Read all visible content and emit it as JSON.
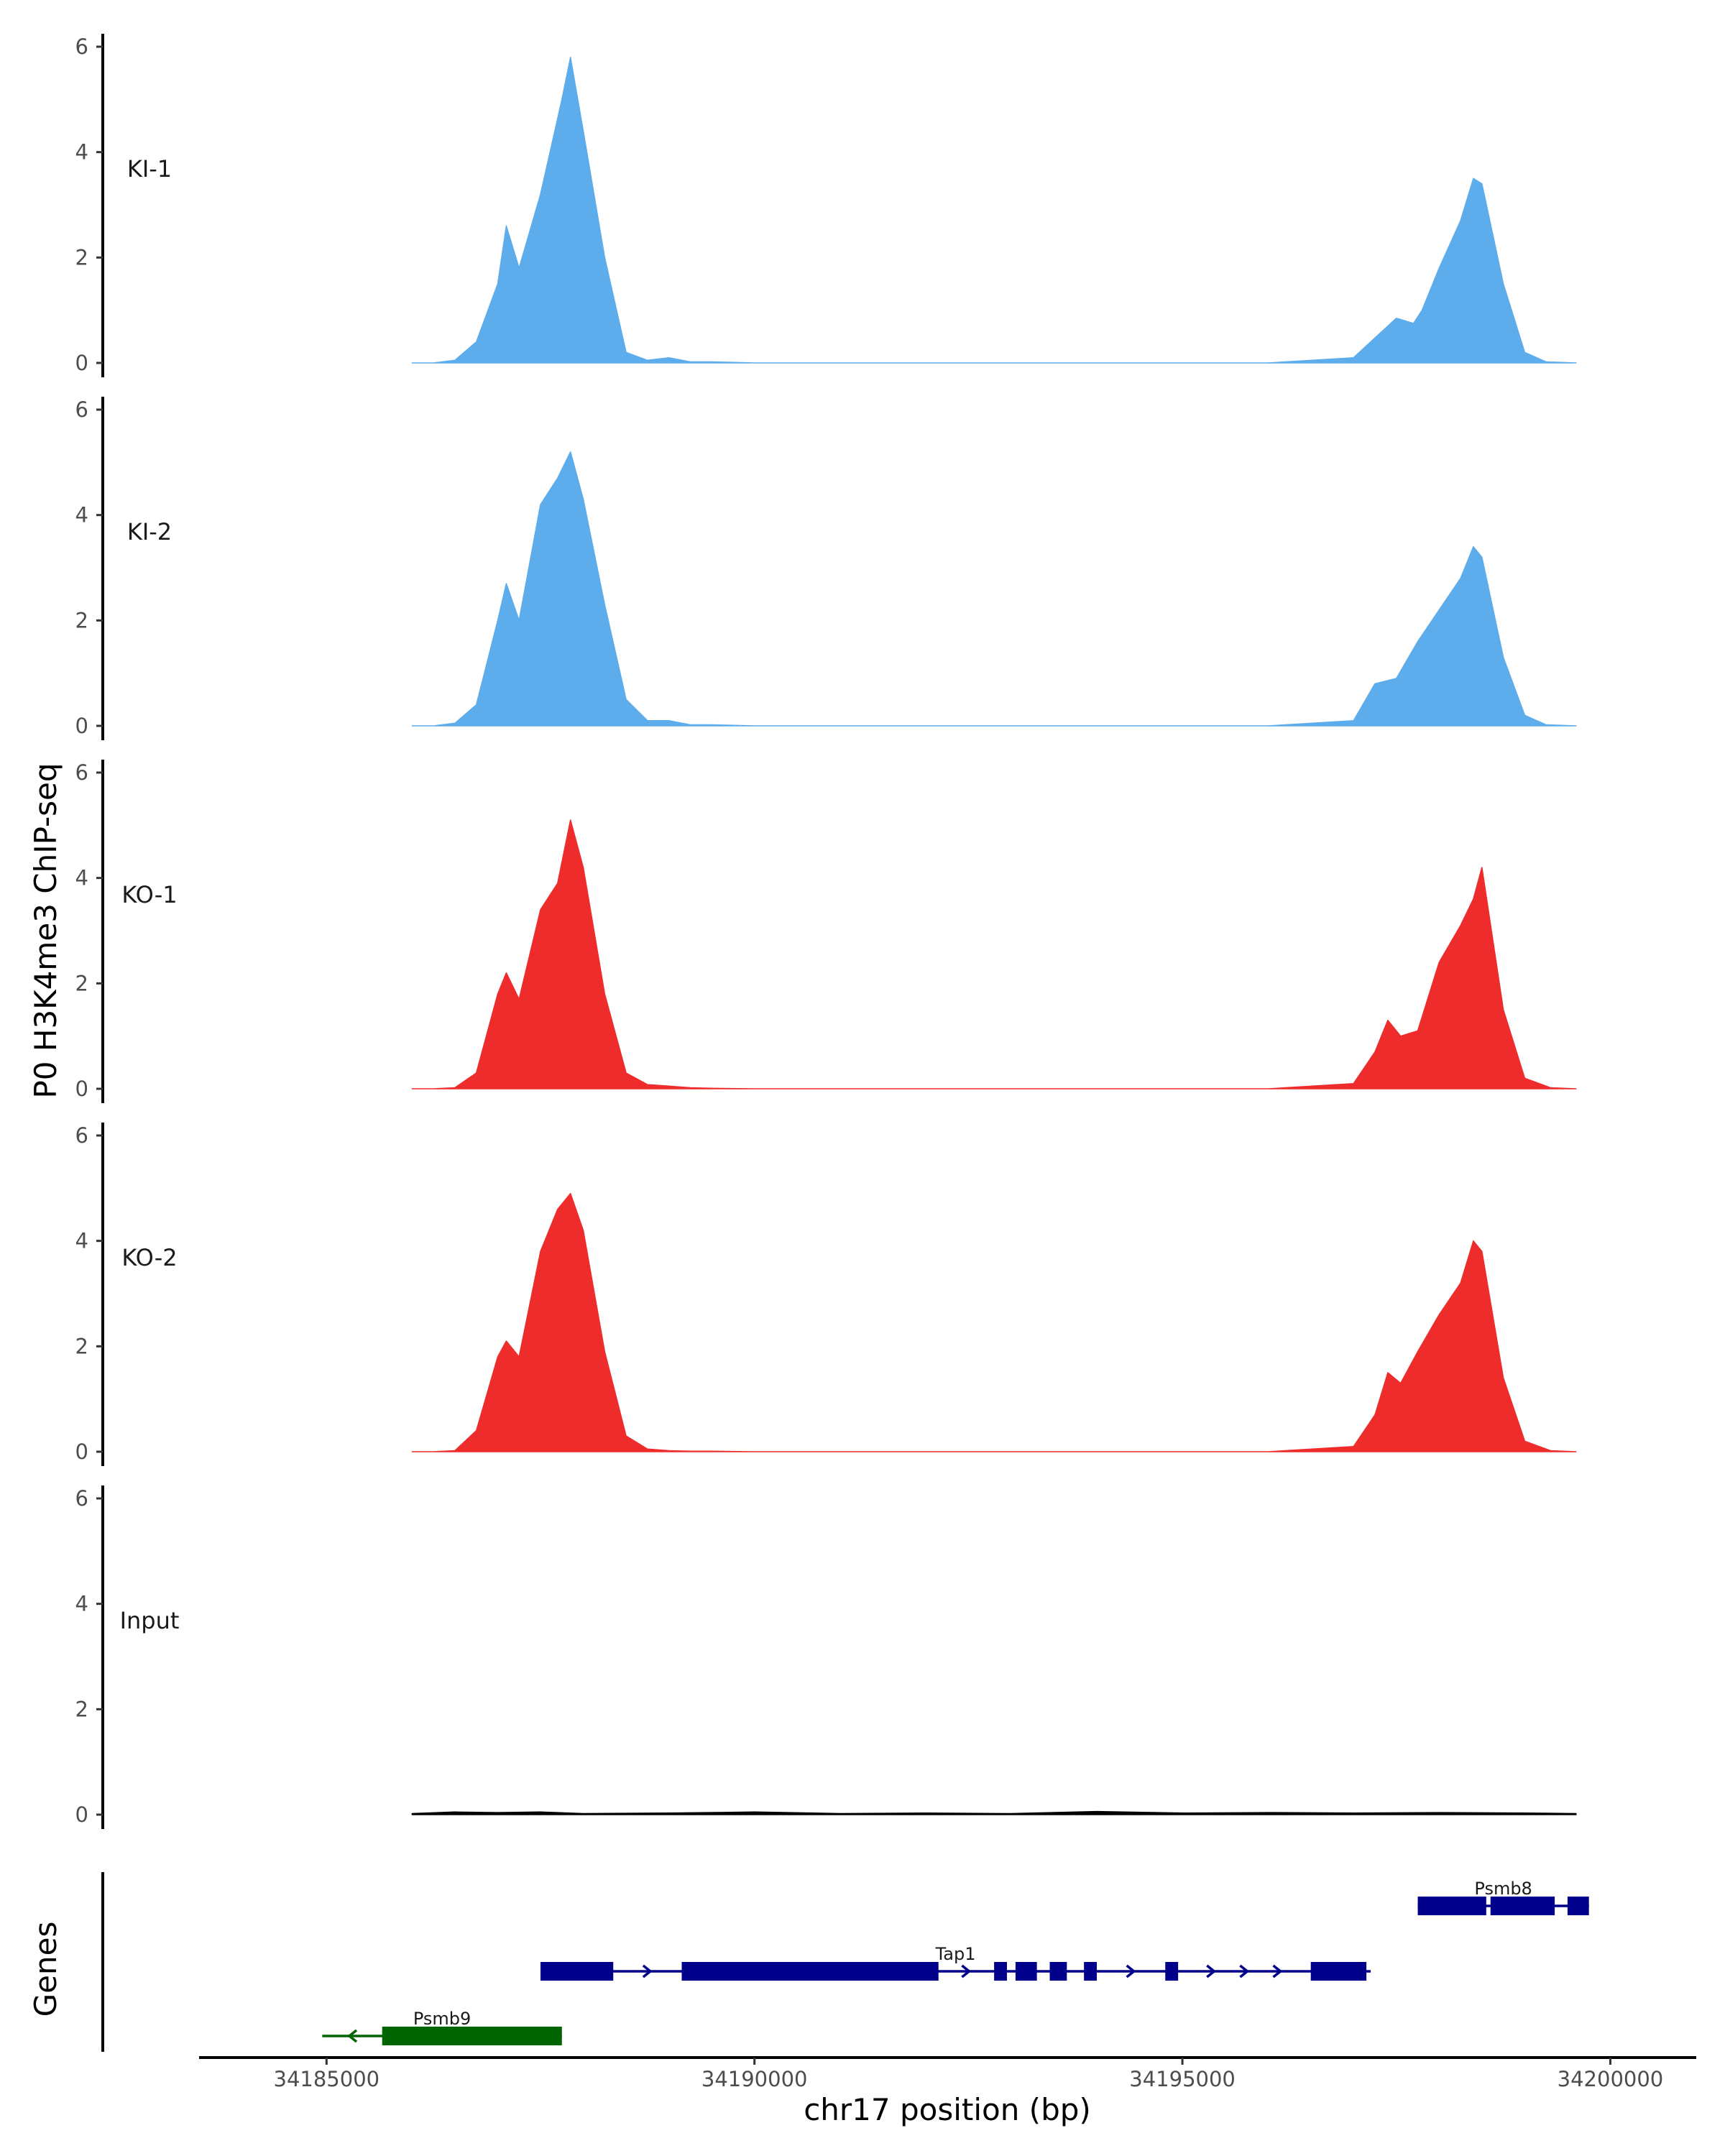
{
  "chart_data": {
    "type": "area",
    "ylabel": "P0 H3K4me3 ChIP-seq",
    "xlabel": "chr17 position (bp)",
    "gene_panel_label": "Genes",
    "xlim": [
      34184250,
      34200500
    ],
    "xticks": [
      34185000,
      34190000,
      34195000,
      34200000
    ],
    "xtick_labels": [
      "34185000",
      "34190000",
      "34195000",
      "34200000"
    ],
    "ylim": [
      0,
      6
    ],
    "yticks": [
      0,
      2,
      4,
      6
    ],
    "ytick_labels": [
      "0",
      "2",
      "4",
      "6"
    ],
    "tracks": [
      {
        "name": "KI-1",
        "color": "#5dacec",
        "x": [
          34186000,
          34186250,
          34186500,
          34186750,
          34187000,
          34187100,
          34187250,
          34187500,
          34187750,
          34187850,
          34188000,
          34188250,
          34188500,
          34188750,
          34189000,
          34189250,
          34189500,
          34190000,
          34192000,
          34194000,
          34196000,
          34197000,
          34197500,
          34197700,
          34197800,
          34198000,
          34198250,
          34198400,
          34198500,
          34198750,
          34199000,
          34199250,
          34199600
        ],
        "values": [
          0,
          0,
          0.05,
          0.4,
          1.5,
          2.6,
          1.8,
          3.2,
          5.0,
          5.8,
          4.4,
          2.0,
          0.2,
          0.05,
          0.1,
          0.02,
          0.02,
          0,
          0,
          0,
          0,
          0.1,
          0.85,
          0.75,
          1.0,
          1.8,
          2.7,
          3.5,
          3.4,
          1.5,
          0.2,
          0.02,
          0
        ]
      },
      {
        "name": "KI-2",
        "color": "#5dacec",
        "x": [
          34186000,
          34186250,
          34186500,
          34186750,
          34187000,
          34187100,
          34187250,
          34187500,
          34187700,
          34187850,
          34188000,
          34188250,
          34188500,
          34188750,
          34189000,
          34189250,
          34189500,
          34190000,
          34192000,
          34194000,
          34196000,
          34197000,
          34197250,
          34197500,
          34197750,
          34198000,
          34198250,
          34198400,
          34198500,
          34198750,
          34199000,
          34199250,
          34199600
        ],
        "values": [
          0,
          0,
          0.05,
          0.4,
          2.0,
          2.7,
          2.0,
          4.2,
          4.7,
          5.2,
          4.3,
          2.3,
          0.5,
          0.1,
          0.1,
          0.02,
          0.02,
          0,
          0,
          0,
          0,
          0.1,
          0.8,
          0.9,
          1.6,
          2.2,
          2.8,
          3.4,
          3.2,
          1.3,
          0.2,
          0.02,
          0
        ]
      },
      {
        "name": "KO-1",
        "color": "#ee2c2c",
        "x": [
          34186000,
          34186250,
          34186500,
          34186750,
          34187000,
          34187100,
          34187250,
          34187500,
          34187700,
          34187850,
          34188000,
          34188250,
          34188500,
          34188750,
          34189000,
          34189250,
          34189500,
          34190000,
          34192000,
          34194000,
          34196000,
          34197000,
          34197250,
          34197400,
          34197550,
          34197750,
          34198000,
          34198250,
          34198400,
          34198500,
          34198750,
          34199000,
          34199300,
          34199600
        ],
        "values": [
          0,
          0,
          0.02,
          0.3,
          1.8,
          2.2,
          1.7,
          3.4,
          3.9,
          5.1,
          4.2,
          1.8,
          0.3,
          0.08,
          0.05,
          0.02,
          0.01,
          0,
          0,
          0,
          0,
          0.1,
          0.7,
          1.3,
          1.0,
          1.1,
          2.4,
          3.1,
          3.6,
          4.2,
          1.5,
          0.2,
          0.02,
          0
        ]
      },
      {
        "name": "KO-2",
        "color": "#ee2c2c",
        "x": [
          34186000,
          34186250,
          34186500,
          34186750,
          34187000,
          34187100,
          34187250,
          34187500,
          34187700,
          34187850,
          34188000,
          34188250,
          34188500,
          34188750,
          34189000,
          34189250,
          34189500,
          34190000,
          34192000,
          34194000,
          34196000,
          34197000,
          34197250,
          34197400,
          34197550,
          34197750,
          34198000,
          34198250,
          34198400,
          34198500,
          34198750,
          34199000,
          34199300,
          34199600
        ],
        "values": [
          0,
          0,
          0.02,
          0.4,
          1.8,
          2.1,
          1.8,
          3.8,
          4.6,
          4.9,
          4.2,
          1.9,
          0.3,
          0.05,
          0.02,
          0.01,
          0.01,
          0,
          0,
          0,
          0,
          0.1,
          0.7,
          1.5,
          1.3,
          1.9,
          2.6,
          3.2,
          4.0,
          3.8,
          1.4,
          0.2,
          0.02,
          0
        ]
      },
      {
        "name": "Input",
        "color": "#000000",
        "x": [
          34186000,
          34186500,
          34187000,
          34187500,
          34188000,
          34189000,
          34190000,
          34191000,
          34192000,
          34193000,
          34194000,
          34195000,
          34196000,
          34197000,
          34198000,
          34199000,
          34199600
        ],
        "values": [
          0.02,
          0.05,
          0.04,
          0.05,
          0.02,
          0.03,
          0.05,
          0.02,
          0.03,
          0.02,
          0.06,
          0.03,
          0.04,
          0.03,
          0.04,
          0.03,
          0.02
        ]
      }
    ],
    "genes": [
      {
        "name": "Psmb8",
        "color": "#00008b",
        "strand": "+",
        "start": 34197750,
        "end": 34199750,
        "exons": [
          [
            34197750,
            34198550
          ],
          [
            34198600,
            34199350
          ],
          [
            34199500,
            34199750
          ]
        ]
      },
      {
        "name": "Tap1",
        "color": "#00008b",
        "strand": "+",
        "start": 34187500,
        "end": 34197200,
        "exons": [
          [
            34187500,
            34188350
          ],
          [
            34189150,
            34192150
          ],
          [
            34192800,
            34192950
          ],
          [
            34193050,
            34193300
          ],
          [
            34193450,
            34193650
          ],
          [
            34193850,
            34194000
          ],
          [
            34194800,
            34194950
          ],
          [
            34196500,
            34197150
          ]
        ]
      },
      {
        "name": "Psmb9",
        "color": "#006400",
        "strand": "-",
        "start": 34184950,
        "end": 34187750,
        "exons": [
          [
            34185650,
            34187750
          ]
        ]
      }
    ]
  }
}
